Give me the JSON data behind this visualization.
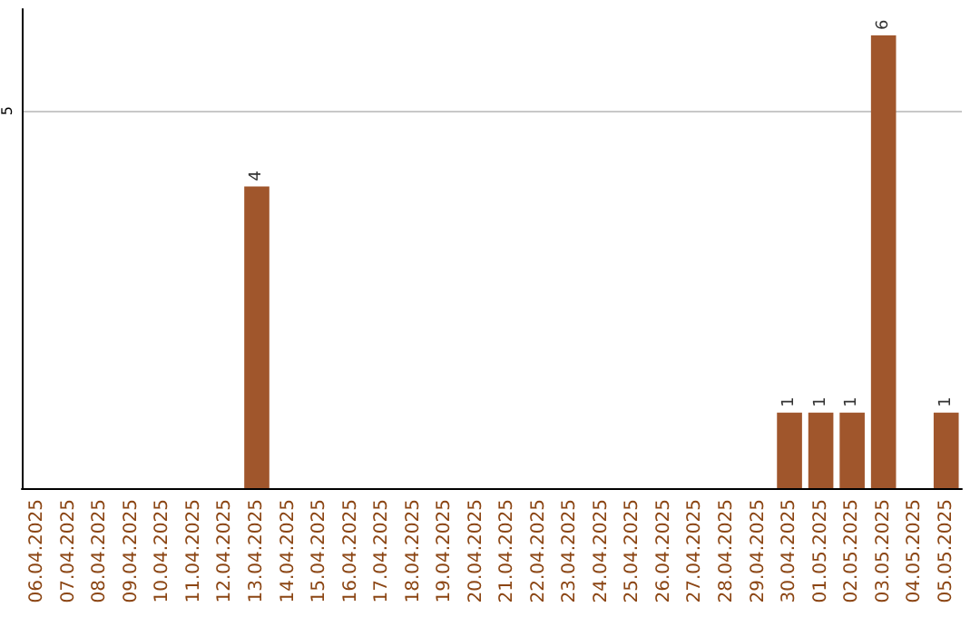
{
  "chart_data": {
    "type": "bar",
    "categories": [
      "06.04.2025",
      "07.04.2025",
      "08.04.2025",
      "09.04.2025",
      "10.04.2025",
      "11.04.2025",
      "12.04.2025",
      "13.04.2025",
      "14.04.2025",
      "15.04.2025",
      "16.04.2025",
      "17.04.2025",
      "18.04.2025",
      "19.04.2025",
      "20.04.2025",
      "21.04.2025",
      "22.04.2025",
      "23.04.2025",
      "24.04.2025",
      "25.04.2025",
      "26.04.2025",
      "27.04.2025",
      "28.04.2025",
      "29.04.2025",
      "30.04.2025",
      "01.05.2025",
      "02.05.2025",
      "03.05.2025",
      "04.05.2025",
      "05.05.2025"
    ],
    "values": [
      0,
      0,
      0,
      0,
      0,
      0,
      0,
      4,
      0,
      0,
      0,
      0,
      0,
      0,
      0,
      0,
      0,
      0,
      0,
      0,
      0,
      0,
      0,
      0,
      1,
      1,
      1,
      6,
      0,
      1
    ],
    "value_labels": [
      null,
      null,
      null,
      null,
      null,
      null,
      null,
      "4",
      null,
      null,
      null,
      null,
      null,
      null,
      null,
      null,
      null,
      null,
      null,
      null,
      null,
      null,
      null,
      null,
      "1",
      "1",
      "1",
      "6",
      null,
      "1"
    ],
    "color": "#a0562c",
    "ylim": [
      0,
      6.35
    ],
    "yticks": [
      5
    ],
    "grid": "y"
  }
}
